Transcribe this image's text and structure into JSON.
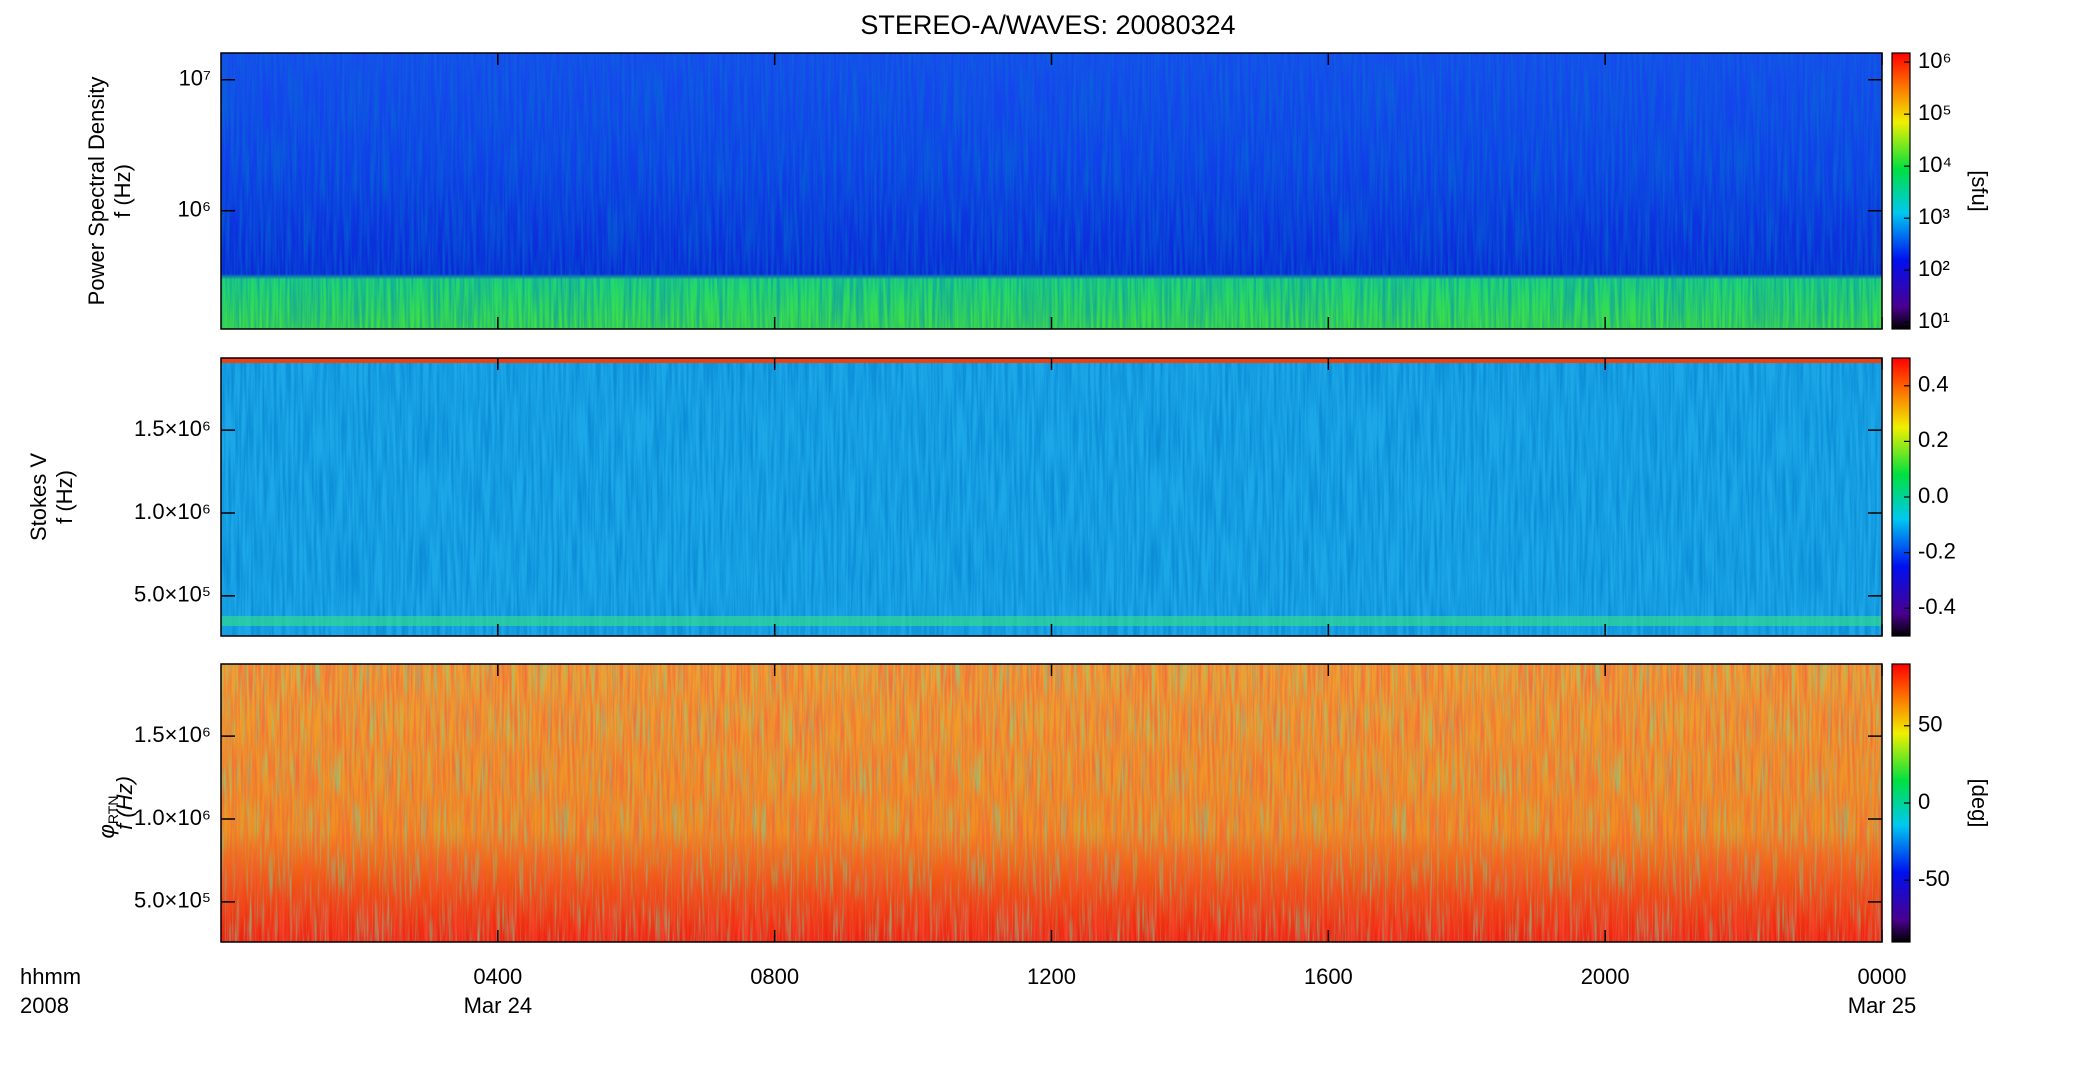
{
  "chart_data": [
    {
      "type": "heatmap",
      "title": "STEREO-A/WAVES: 20080324",
      "ylabel": [
        "Power Spectral Density",
        "f (Hz)"
      ],
      "ylog": true,
      "ylim": [
        125000,
        16000000
      ],
      "yticks": [
        {
          "value": 1000000,
          "label": "10⁶"
        },
        {
          "value": 10000000,
          "label": "10⁷"
        }
      ],
      "clog": true,
      "clim": [
        7.4,
        1500000
      ],
      "cticks": [
        {
          "value": 10,
          "label": "10¹"
        },
        {
          "value": 100,
          "label": "10²"
        },
        {
          "value": 1000,
          "label": "10³"
        },
        {
          "value": 10000,
          "label": "10⁴"
        },
        {
          "value": 100000,
          "label": "10⁵"
        },
        {
          "value": 1000000,
          "label": "10⁶"
        }
      ],
      "clabel": "[sfu]",
      "xlim": [
        0,
        24
      ]
    },
    {
      "type": "heatmap",
      "ylabel": [
        "Stokes V",
        "f (Hz)"
      ],
      "ylog": false,
      "ylim": [
        258000,
        1935000
      ],
      "yticks": [
        {
          "value": 500000,
          "label": "5.0×10⁵"
        },
        {
          "value": 1000000,
          "label": "1.0×10⁶"
        },
        {
          "value": 1500000,
          "label": "1.5×10⁶"
        }
      ],
      "clog": false,
      "clim": [
        -0.5,
        0.5
      ],
      "cticks": [
        -0.4,
        -0.2,
        {
          "value": 0,
          "label": "0.0"
        },
        0.2,
        0.4
      ],
      "xlim": [
        0,
        24
      ]
    },
    {
      "type": "heatmap",
      "ylabel": [
        "φ",
        "f (Hz)"
      ],
      "ylabel_sub": "RTN",
      "ylog": false,
      "ylim": [
        258000,
        1935000
      ],
      "yticks": [
        {
          "value": 500000,
          "label": "5.0×10⁵"
        },
        {
          "value": 1000000,
          "label": "1.0×10⁶"
        },
        {
          "value": 1500000,
          "label": "1.5×10⁶"
        }
      ],
      "clog": false,
      "clim": [
        -90,
        90
      ],
      "cticks": [
        -50,
        0,
        50
      ],
      "clabel": "[deg]",
      "xlim": [
        0,
        24
      ],
      "xlabel": [
        "hhmm",
        "2008"
      ],
      "xticks": [
        {
          "value": 4,
          "label": "0400"
        },
        {
          "value": 8,
          "label": "0800"
        },
        {
          "value": 12,
          "label": "1200"
        },
        {
          "value": 16,
          "label": "1600"
        },
        {
          "value": 20,
          "label": "2000"
        },
        {
          "value": 24,
          "label": "0000"
        }
      ],
      "date_labels": [
        {
          "value": 4,
          "label": "Mar 24"
        },
        {
          "value": 24,
          "label": "Mar 25"
        }
      ]
    }
  ]
}
